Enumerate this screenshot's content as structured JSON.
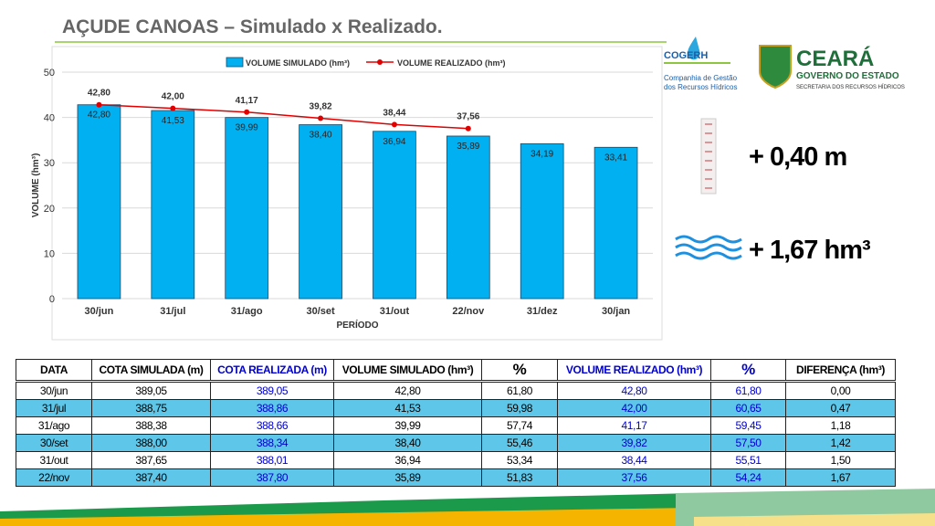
{
  "title": "AÇUDE CANOAS – Simulado x Realizado.",
  "chart_data": {
    "type": "bar",
    "categories": [
      "30/jun",
      "31/jul",
      "31/ago",
      "30/set",
      "31/out",
      "22/nov",
      "31/dez",
      "30/jan"
    ],
    "series": [
      {
        "name": "VOLUME SIMULADO (hm³)",
        "color": "#00b0f0",
        "type": "bar",
        "values": [
          42.8,
          41.53,
          39.99,
          38.4,
          36.94,
          35.89,
          34.19,
          33.41
        ],
        "value_labels": [
          "42,80",
          "41,53",
          "39,99",
          "38,40",
          "36,94",
          "35,89",
          "34,19",
          "33,41"
        ]
      },
      {
        "name": "VOLUME REALIZADO (hm³)",
        "color": "#e00000",
        "type": "line",
        "values": [
          42.8,
          42.0,
          41.17,
          39.82,
          38.44,
          37.56,
          null,
          null
        ],
        "value_labels": [
          "42,80",
          "42,00",
          "41,17",
          "39,82",
          "38,44",
          "37,56",
          null,
          null
        ]
      }
    ],
    "ylabel": "VOLUME (hm³)",
    "xlabel": "PERÍODO",
    "ylim": [
      0,
      50
    ],
    "yticks": [
      0,
      10,
      20,
      30,
      40,
      50
    ],
    "grid": true,
    "legend": "top"
  },
  "logos": {
    "cogerh": "COGERH",
    "cogerh_sub": [
      "Companhia de Gestão",
      "dos Recursos Hídricos"
    ],
    "ceara": "CEARÁ",
    "ceara_sub": "GOVERNO DO ESTADO",
    "ceara_sec": "SECRETARIA DOS RECURSOS HÍDRICOS"
  },
  "indicators": {
    "level": "+ 0,40 m",
    "volume": "+ 1,67 hm³"
  },
  "table": {
    "header": [
      "DATA",
      "COTA SIMULADA (m)",
      "COTA REALIZADA (m)",
      "VOLUME SIMULADO (hm³)",
      "%",
      "VOLUME REALIZADO (hm³)",
      "%",
      "DIFERENÇA (hm³)"
    ],
    "rows": [
      [
        "30/jun",
        "389,05",
        "389,05",
        "42,80",
        "61,80",
        "42,80",
        "61,80",
        "0,00"
      ],
      [
        "31/jul",
        "388,75",
        "388,86",
        "41,53",
        "59,98",
        "42,00",
        "60,65",
        "0,47"
      ],
      [
        "31/ago",
        "388,38",
        "388,66",
        "39,99",
        "57,74",
        "41,17",
        "59,45",
        "1,18"
      ],
      [
        "30/set",
        "388,00",
        "388,34",
        "38,40",
        "55,46",
        "39,82",
        "57,50",
        "1,42"
      ],
      [
        "31/out",
        "387,65",
        "388,01",
        "36,94",
        "53,34",
        "38,44",
        "55,51",
        "1,50"
      ],
      [
        "22/nov",
        "387,40",
        "387,80",
        "35,89",
        "51,83",
        "37,56",
        "54,24",
        "1,67"
      ]
    ]
  }
}
